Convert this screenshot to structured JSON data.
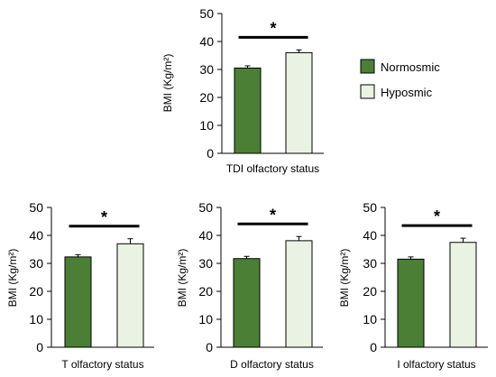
{
  "legend": {
    "entries": [
      {
        "label": "Normosmic",
        "color": "#4a7f35"
      },
      {
        "label": "Hyposmic",
        "color": "#eaf3e3"
      }
    ]
  },
  "chart_data": [
    {
      "type": "bar",
      "categories": [
        "Normosmic",
        "Hyposmic"
      ],
      "values": [
        30.5,
        36.0
      ],
      "errors": [
        0.8,
        1.0
      ],
      "colors": [
        "#4a7f35",
        "#eaf3e3"
      ],
      "xlabel": "TDI olfactory status",
      "ylabel": "BMI (Kg/m²)",
      "ylim": [
        0,
        50
      ],
      "yticks": [
        0,
        10,
        20,
        30,
        40,
        50
      ],
      "significance": "*"
    },
    {
      "type": "bar",
      "categories": [
        "Normosmic",
        "Hyposmic"
      ],
      "values": [
        32.3,
        37.0
      ],
      "errors": [
        0.8,
        1.8
      ],
      "colors": [
        "#4a7f35",
        "#eaf3e3"
      ],
      "xlabel": "T olfactory status",
      "ylabel": "BMI (Kg/m²)",
      "ylim": [
        0,
        50
      ],
      "yticks": [
        0,
        10,
        20,
        30,
        40,
        50
      ],
      "significance": "*"
    },
    {
      "type": "bar",
      "categories": [
        "Normosmic",
        "Hyposmic"
      ],
      "values": [
        31.7,
        38.1
      ],
      "errors": [
        0.8,
        1.5
      ],
      "colors": [
        "#4a7f35",
        "#eaf3e3"
      ],
      "xlabel": "D olfactory status",
      "ylabel": "BMI (Kg/m²)",
      "ylim": [
        0,
        50
      ],
      "yticks": [
        0,
        10,
        20,
        30,
        40,
        50
      ],
      "significance": "*"
    },
    {
      "type": "bar",
      "categories": [
        "Normosmic",
        "Hyposmic"
      ],
      "values": [
        31.5,
        37.5
      ],
      "errors": [
        0.8,
        1.5
      ],
      "colors": [
        "#4a7f35",
        "#eaf3e3"
      ],
      "xlabel": "I olfactory status",
      "ylabel": "BMI (Kg/m²)",
      "ylim": [
        0,
        50
      ],
      "yticks": [
        0,
        10,
        20,
        30,
        40,
        50
      ],
      "significance": "*"
    }
  ]
}
